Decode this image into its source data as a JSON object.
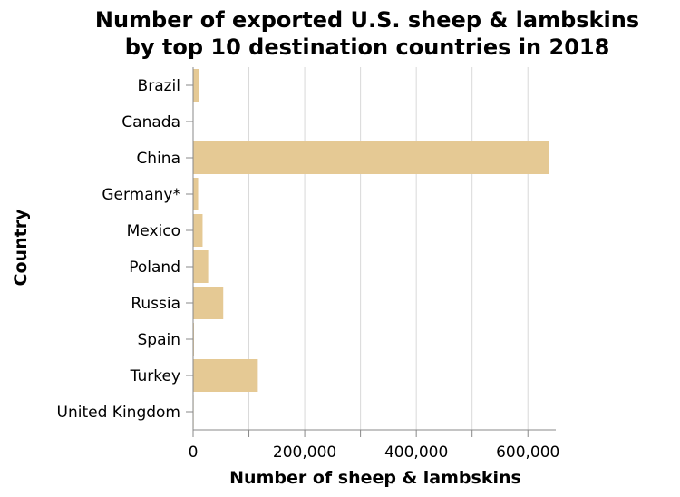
{
  "chart_data": {
    "type": "bar",
    "orientation": "horizontal",
    "title": [
      "Number of exported U.S. sheep & lambskins",
      "by top 10 destination countries in 2018"
    ],
    "xlabel": "Number of sheep & lambskins",
    "ylabel": "Country",
    "categories": [
      "Brazil",
      "Canada",
      "China",
      "Germany*",
      "Mexico",
      "Poland",
      "Russia",
      "Spain",
      "Turkey",
      "United Kingdom"
    ],
    "values": [
      11000,
      500,
      638000,
      9000,
      17000,
      27000,
      54000,
      1500,
      116000,
      1000
    ],
    "xlim": [
      0,
      650000
    ],
    "xticks": [
      0,
      200000,
      400000,
      600000
    ],
    "xtick_labels": [
      "0",
      "200,000",
      "400,000",
      "600,000"
    ],
    "grid": true,
    "bar_color": "#e5c994"
  }
}
